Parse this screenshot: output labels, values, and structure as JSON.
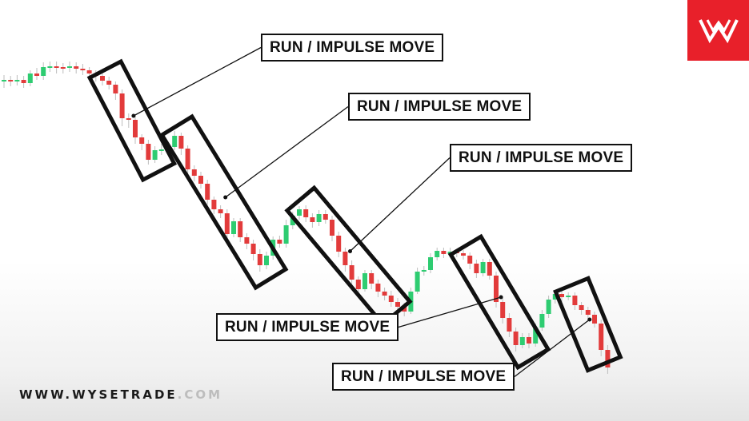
{
  "brand": {
    "accent": "#e8202a",
    "logo_icon": "wysetrade-w-logo-icon"
  },
  "footer": {
    "url_main": "WWW.WYSETRADE",
    "url_tld": ".COM"
  },
  "colors": {
    "bull": "#2ecc71",
    "bear": "#e23b3b",
    "box": "#111111"
  },
  "callouts": [
    {
      "label": "RUN / IMPULSE MOVE"
    },
    {
      "label": "RUN / IMPULSE MOVE"
    },
    {
      "label": "RUN / IMPULSE MOVE"
    },
    {
      "label": "RUN / IMPULSE MOVE"
    },
    {
      "label": "RUN / IMPULSE MOVE"
    }
  ],
  "chart_data": {
    "type": "candlestick",
    "grid": false,
    "candles": [
      {
        "o": 160,
        "c": 160,
        "h": 166,
        "l": 150
      },
      {
        "o": 160,
        "c": 158,
        "h": 165,
        "l": 152
      },
      {
        "o": 158,
        "c": 160,
        "h": 166,
        "l": 153
      },
      {
        "o": 160,
        "c": 156,
        "h": 165,
        "l": 150
      },
      {
        "o": 156,
        "c": 168,
        "h": 172,
        "l": 152
      },
      {
        "o": 168,
        "c": 165,
        "h": 175,
        "l": 160
      },
      {
        "o": 165,
        "c": 176,
        "h": 182,
        "l": 160
      },
      {
        "o": 176,
        "c": 177,
        "h": 183,
        "l": 170
      },
      {
        "o": 177,
        "c": 176,
        "h": 183,
        "l": 168
      },
      {
        "o": 176,
        "c": 175,
        "h": 181,
        "l": 168
      },
      {
        "o": 175,
        "c": 177,
        "h": 183,
        "l": 170
      },
      {
        "o": 177,
        "c": 174,
        "h": 182,
        "l": 168
      },
      {
        "o": 174,
        "c": 172,
        "h": 180,
        "l": 166
      },
      {
        "o": 172,
        "c": 168,
        "h": 176,
        "l": 162
      },
      {
        "o": 168,
        "c": 165,
        "h": 172,
        "l": 158
      },
      {
        "o": 165,
        "c": 159,
        "h": 170,
        "l": 153
      },
      {
        "o": 159,
        "c": 154,
        "h": 164,
        "l": 148
      },
      {
        "o": 154,
        "c": 143,
        "h": 158,
        "l": 135
      },
      {
        "o": 143,
        "c": 112,
        "h": 148,
        "l": 102
      },
      {
        "o": 112,
        "c": 110,
        "h": 118,
        "l": 100
      },
      {
        "o": 110,
        "c": 88,
        "h": 115,
        "l": 80
      },
      {
        "o": 88,
        "c": 80,
        "h": 92,
        "l": 72
      },
      {
        "o": 80,
        "c": 60,
        "h": 85,
        "l": 54
      },
      {
        "o": 60,
        "c": 72,
        "h": 77,
        "l": 56
      },
      {
        "o": 72,
        "c": 73,
        "h": 80,
        "l": 66
      },
      {
        "o": 73,
        "c": 76,
        "h": 80,
        "l": 68
      },
      {
        "o": 76,
        "c": 90,
        "h": 96,
        "l": 72
      },
      {
        "o": 90,
        "c": 74,
        "h": 94,
        "l": 66
      },
      {
        "o": 74,
        "c": 48,
        "h": 78,
        "l": 40
      },
      {
        "o": 48,
        "c": 40,
        "h": 53,
        "l": 33
      },
      {
        "o": 40,
        "c": 30,
        "h": 45,
        "l": 24
      },
      {
        "o": 30,
        "c": 10,
        "h": 35,
        "l": 4
      },
      {
        "o": 10,
        "c": -2,
        "h": 14,
        "l": -8
      },
      {
        "o": -2,
        "c": -7,
        "h": 3,
        "l": -13
      },
      {
        "o": -7,
        "c": -33,
        "h": -2,
        "l": -40
      },
      {
        "o": -33,
        "c": -17,
        "h": -13,
        "l": -37
      },
      {
        "o": -17,
        "c": -37,
        "h": -13,
        "l": -43
      },
      {
        "o": -37,
        "c": -45,
        "h": -32,
        "l": -52
      },
      {
        "o": -45,
        "c": -58,
        "h": -40,
        "l": -66
      },
      {
        "o": -58,
        "c": -72,
        "h": -52,
        "l": -80
      },
      {
        "o": -72,
        "c": -60,
        "h": -55,
        "l": -77
      },
      {
        "o": -60,
        "c": -40,
        "h": -36,
        "l": -65
      },
      {
        "o": -40,
        "c": -45,
        "h": -35,
        "l": -50
      },
      {
        "o": -45,
        "c": -22,
        "h": -15,
        "l": -50
      },
      {
        "o": -22,
        "c": -10,
        "h": -5,
        "l": -27
      },
      {
        "o": -10,
        "c": -2,
        "h": 2,
        "l": -15
      },
      {
        "o": -2,
        "c": -12,
        "h": 3,
        "l": -18
      },
      {
        "o": -12,
        "c": -18,
        "h": -7,
        "l": -25
      },
      {
        "o": -18,
        "c": -8,
        "h": -3,
        "l": -23
      },
      {
        "o": -8,
        "c": -15,
        "h": -3,
        "l": -20
      },
      {
        "o": -15,
        "c": -35,
        "h": -10,
        "l": -42
      },
      {
        "o": -35,
        "c": -55,
        "h": -30,
        "l": -62
      },
      {
        "o": -55,
        "c": -72,
        "h": -50,
        "l": -80
      },
      {
        "o": -72,
        "c": -90,
        "h": -66,
        "l": -98
      },
      {
        "o": -90,
        "c": -102,
        "h": -86,
        "l": -110
      },
      {
        "o": -102,
        "c": -82,
        "h": -78,
        "l": -105
      },
      {
        "o": -82,
        "c": -95,
        "h": -78,
        "l": -102
      },
      {
        "o": -95,
        "c": -105,
        "h": -90,
        "l": -112
      },
      {
        "o": -105,
        "c": -110,
        "h": -100,
        "l": -116
      },
      {
        "o": -110,
        "c": -118,
        "h": -104,
        "l": -124
      },
      {
        "o": -118,
        "c": -124,
        "h": -113,
        "l": -130
      },
      {
        "o": -124,
        "c": -130,
        "h": -119,
        "l": -136
      },
      {
        "o": -130,
        "c": -105,
        "h": -100,
        "l": -133
      },
      {
        "o": -105,
        "c": -80,
        "h": -75,
        "l": -108
      },
      {
        "o": -80,
        "c": -78,
        "h": -73,
        "l": -85
      },
      {
        "o": -78,
        "c": -62,
        "h": -57,
        "l": -82
      },
      {
        "o": -62,
        "c": -54,
        "h": -50,
        "l": -66
      },
      {
        "o": -54,
        "c": -58,
        "h": -50,
        "l": -63
      },
      {
        "o": -58,
        "c": -55,
        "h": -50,
        "l": -62
      },
      {
        "o": -55,
        "c": -57,
        "h": -52,
        "l": -62
      },
      {
        "o": -57,
        "c": -60,
        "h": -53,
        "l": -65
      },
      {
        "o": -60,
        "c": -70,
        "h": -56,
        "l": -77
      },
      {
        "o": -70,
        "c": -82,
        "h": -65,
        "l": -88
      },
      {
        "o": -82,
        "c": -68,
        "h": -64,
        "l": -86
      },
      {
        "o": -68,
        "c": -85,
        "h": -64,
        "l": -90
      },
      {
        "o": -85,
        "c": -118,
        "h": -80,
        "l": -125
      },
      {
        "o": -118,
        "c": -138,
        "h": -113,
        "l": -145
      },
      {
        "o": -138,
        "c": -155,
        "h": -132,
        "l": -162
      },
      {
        "o": -155,
        "c": -172,
        "h": -150,
        "l": -180
      },
      {
        "o": -172,
        "c": -162,
        "h": -157,
        "l": -176
      },
      {
        "o": -162,
        "c": -170,
        "h": -157,
        "l": -176
      },
      {
        "o": -170,
        "c": -150,
        "h": -145,
        "l": -174
      },
      {
        "o": -150,
        "c": -133,
        "h": -128,
        "l": -154
      },
      {
        "o": -133,
        "c": -115,
        "h": -110,
        "l": -138
      },
      {
        "o": -115,
        "c": -108,
        "h": -104,
        "l": -120
      },
      {
        "o": -108,
        "c": -112,
        "h": -104,
        "l": -118
      },
      {
        "o": -112,
        "c": -110,
        "h": -106,
        "l": -116
      },
      {
        "o": -110,
        "c": -122,
        "h": -106,
        "l": -128
      },
      {
        "o": -122,
        "c": -128,
        "h": -118,
        "l": -134
      },
      {
        "o": -128,
        "c": -134,
        "h": -124,
        "l": -140
      },
      {
        "o": -134,
        "c": -145,
        "h": -130,
        "l": -150
      },
      {
        "o": -145,
        "c": -178,
        "h": -140,
        "l": -186
      },
      {
        "o": -178,
        "c": -200,
        "h": -172,
        "l": -208
      }
    ],
    "impulse_moves": [
      {
        "start": 16,
        "end": 23
      },
      {
        "start": 27,
        "end": 40
      },
      {
        "start": 46,
        "end": 59
      },
      {
        "start": 71,
        "end": 80
      },
      {
        "start": 87,
        "end": 91
      }
    ]
  }
}
